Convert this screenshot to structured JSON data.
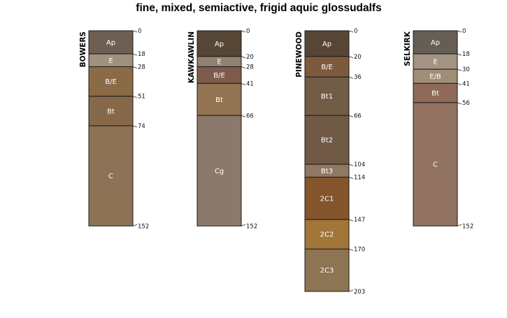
{
  "title": "fine, mixed, semiactive, frigid aquic glossudalfs",
  "profiles": [
    {
      "name": "BOWERS",
      "depths": [
        "0",
        "18",
        "28",
        "51",
        "74",
        "152"
      ],
      "horizons": [
        {
          "name": "Ap",
          "top": 0,
          "bottom": 18,
          "color": "#6e5f52"
        },
        {
          "name": "E",
          "top": 18,
          "bottom": 28,
          "color": "#a0917e"
        },
        {
          "name": "B/E",
          "top": 28,
          "bottom": 51,
          "color": "#8b6a46"
        },
        {
          "name": "Bt",
          "top": 51,
          "bottom": 74,
          "color": "#876848"
        },
        {
          "name": "C",
          "top": 74,
          "bottom": 152,
          "color": "#8d7255"
        }
      ]
    },
    {
      "name": "KAWKAWLIN",
      "depths": [
        "0",
        "20",
        "28",
        "41",
        "66",
        "152"
      ],
      "horizons": [
        {
          "name": "Ap",
          "top": 0,
          "bottom": 20,
          "color": "#564636"
        },
        {
          "name": "E",
          "top": 20,
          "bottom": 28,
          "color": "#928172"
        },
        {
          "name": "B/E",
          "top": 28,
          "bottom": 41,
          "color": "#7e5c4d"
        },
        {
          "name": "Bt",
          "top": 41,
          "bottom": 66,
          "color": "#927452"
        },
        {
          "name": "Cg",
          "top": 66,
          "bottom": 152,
          "color": "#8b796c"
        }
      ]
    },
    {
      "name": "PINEWOOD",
      "depths": [
        "0",
        "20",
        "36",
        "66",
        "104",
        "114",
        "147",
        "170",
        "203"
      ],
      "horizons": [
        {
          "name": "Ap",
          "top": 0,
          "bottom": 20,
          "color": "#574635"
        },
        {
          "name": "B/E",
          "top": 20,
          "bottom": 36,
          "color": "#7e5a3c"
        },
        {
          "name": "Bt1",
          "top": 36,
          "bottom": 66,
          "color": "#725c46"
        },
        {
          "name": "Bt2",
          "top": 66,
          "bottom": 104,
          "color": "#705a45"
        },
        {
          "name": "Bt3",
          "top": 104,
          "bottom": 114,
          "color": "#917863"
        },
        {
          "name": "2C1",
          "top": 114,
          "bottom": 147,
          "color": "#85552b"
        },
        {
          "name": "2C2",
          "top": 147,
          "bottom": 170,
          "color": "#a17638"
        },
        {
          "name": "2C3",
          "top": 170,
          "bottom": 203,
          "color": "#8d7452"
        }
      ]
    },
    {
      "name": "SELKIRK",
      "depths": [
        "0",
        "18",
        "30",
        "41",
        "56",
        "152"
      ],
      "horizons": [
        {
          "name": "Ap",
          "top": 0,
          "bottom": 18,
          "color": "#665e55"
        },
        {
          "name": "E",
          "top": 18,
          "bottom": 30,
          "color": "#a39382"
        },
        {
          "name": "E/B",
          "top": 30,
          "bottom": 41,
          "color": "#a08e76"
        },
        {
          "name": "Bt",
          "top": 41,
          "bottom": 56,
          "color": "#906a58"
        },
        {
          "name": "C",
          "top": 56,
          "bottom": 152,
          "color": "#927362"
        }
      ]
    }
  ]
}
